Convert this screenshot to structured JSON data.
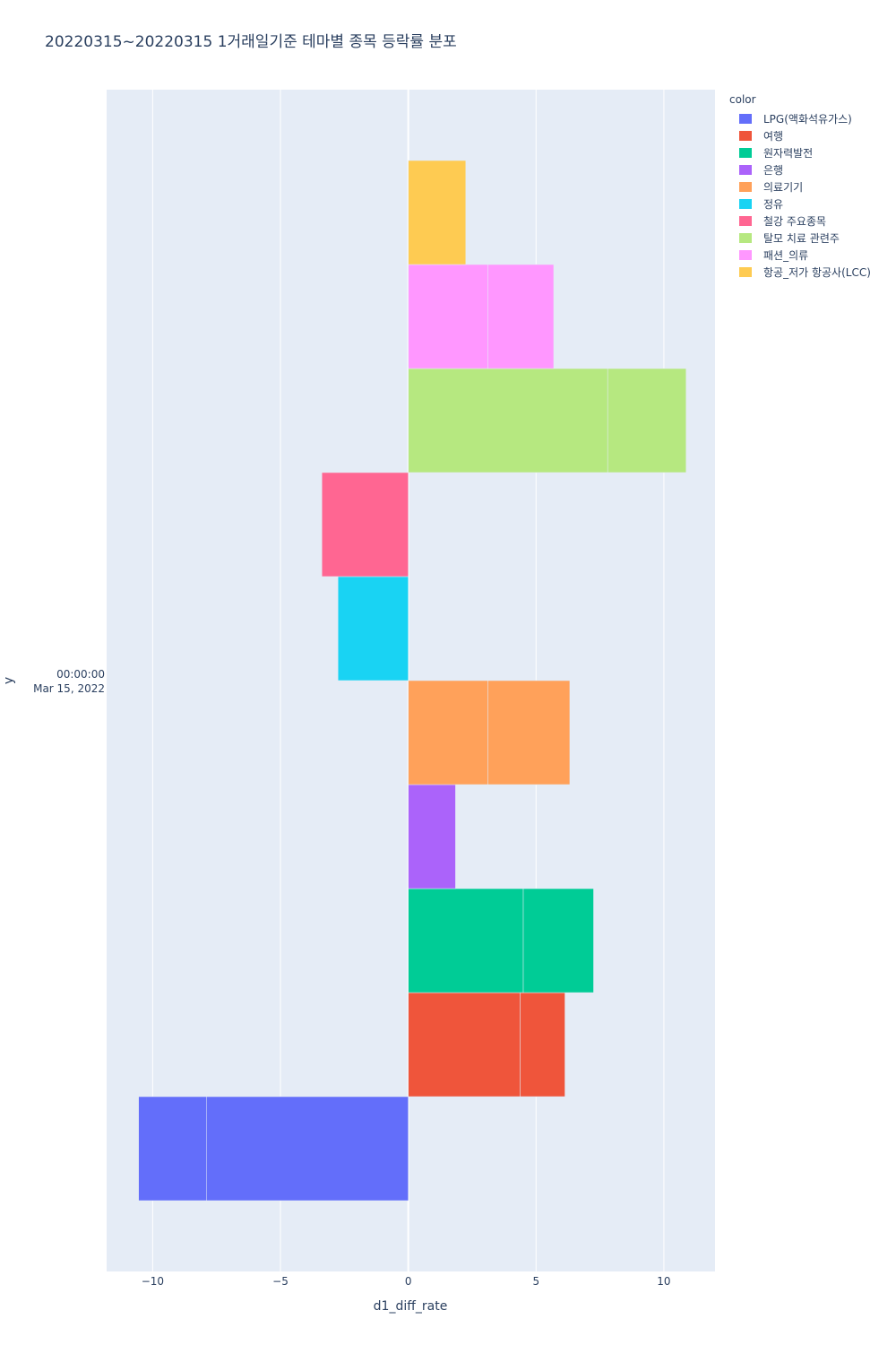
{
  "title": "20220315~20220315 1거래일기준 테마별 종목 등락률 분포",
  "chart_data": {
    "type": "bar",
    "orientation": "horizontal",
    "barmode": "group",
    "title": "20220315~20220315 1거래일기준 테마별 종목 등락률 분포",
    "xlabel": "d1_diff_rate",
    "ylabel": "y",
    "xlim": [
      -11.8,
      12.0
    ],
    "x_ticks": [
      -10,
      -5,
      0,
      5,
      10
    ],
    "x_tick_labels": [
      "−10",
      "−5",
      "0",
      "5",
      "10"
    ],
    "y_category_label": [
      "00:00:00",
      "Mar 15, 2022"
    ],
    "grid": true,
    "legend_title": "color",
    "legend_position": "right",
    "series": [
      {
        "name": "LPG(액화석유가스)",
        "color": "#636efa",
        "values": [
          -7.9,
          -2.65
        ]
      },
      {
        "name": "여행",
        "color": "#EF553B",
        "values": [
          4.38,
          1.75
        ]
      },
      {
        "name": "원자력발전",
        "color": "#00cc96",
        "values": [
          4.5,
          2.75
        ]
      },
      {
        "name": "은행",
        "color": "#ab63fa",
        "values": [
          1.85
        ]
      },
      {
        "name": "의료기기",
        "color": "#FFA15A",
        "values": [
          3.12,
          3.2
        ]
      },
      {
        "name": "정유",
        "color": "#19d3f3",
        "values": [
          -2.75
        ]
      },
      {
        "name": "철강 주요종목",
        "color": "#FF6692",
        "values": [
          -3.38
        ]
      },
      {
        "name": "탈모 치료 관련주",
        "color": "#B6E880",
        "values": [
          7.8,
          3.07
        ]
      },
      {
        "name": "패션_의류",
        "color": "#FF97FF",
        "values": [
          3.12,
          2.57
        ]
      },
      {
        "name": "항공_저가 항공사(LCC)",
        "color": "#FECB52",
        "values": [
          2.25
        ]
      }
    ]
  }
}
